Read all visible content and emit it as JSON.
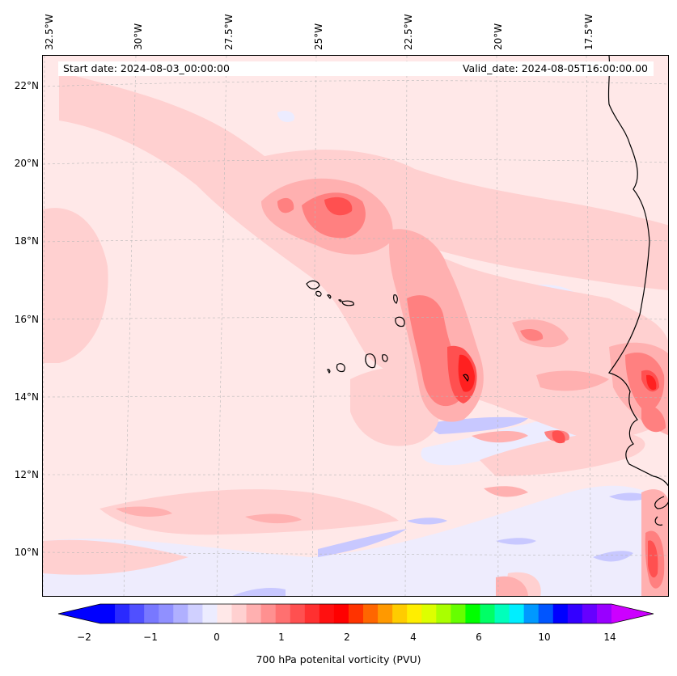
{
  "header": {
    "start_date": "Start date: 2024-08-03_00:00:00",
    "valid_date": "Valid_date: 2024-08-05T16:00:00.00"
  },
  "axes": {
    "lon_labels": [
      "32.5°W",
      "30°W",
      "27.5°W",
      "25°W",
      "22.5°W",
      "20°W",
      "17.5°W"
    ],
    "lat_labels": [
      "22°N",
      "20°N",
      "18°N",
      "16°N",
      "14°N",
      "12°N",
      "10°N"
    ]
  },
  "colorbar": {
    "label": "700 hPa potenital vorticity (PVU)",
    "ticks": [
      "−2",
      "−1",
      "0",
      "1",
      "2",
      "4",
      "6",
      "10",
      "14"
    ],
    "colors": [
      "#0000ff",
      "#2a2aff",
      "#5050ff",
      "#7878ff",
      "#9090ff",
      "#b0b0ff",
      "#d0d0ff",
      "#ececff",
      "#ffe8e8",
      "#ffd0d0",
      "#ffb0b0",
      "#ff9090",
      "#ff7070",
      "#ff5050",
      "#ff3030",
      "#ff1010",
      "#ff0000",
      "#ff3300",
      "#ff6600",
      "#ff9900",
      "#ffcc00",
      "#ffee00",
      "#ddff00",
      "#aaff00",
      "#66ff00",
      "#00ff00",
      "#00ff66",
      "#00ffbb",
      "#00eeff",
      "#0099ff",
      "#0055ff",
      "#0000ff",
      "#3300ff",
      "#6600ff",
      "#9900ff"
    ],
    "extend_low_color": "#0000ff",
    "extend_high_color": "#cc00ff"
  },
  "field_colors": {
    "background": "#ffe8e8",
    "light_pink": "#ffd0d0",
    "pink": "#ffb0b0",
    "medium_red": "#ff8080",
    "red": "#ff5050",
    "strong_red": "#ff2020",
    "light_blue": "#ececff",
    "blue": "#c8c8ff",
    "coastline": "#000000"
  }
}
